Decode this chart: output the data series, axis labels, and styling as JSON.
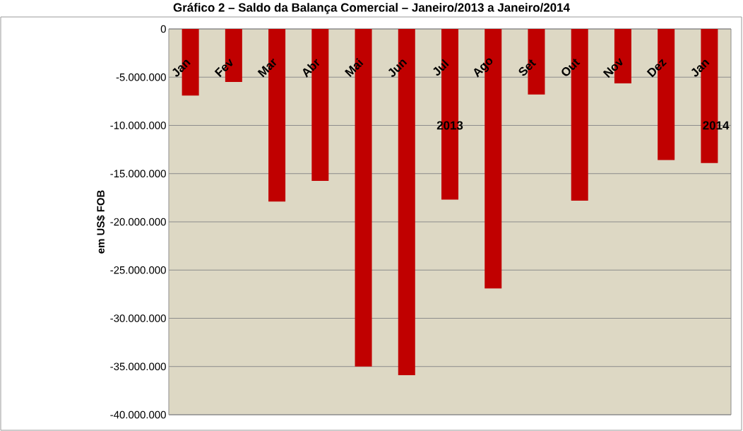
{
  "chart_data": {
    "type": "bar",
    "title": "Gráfico 2 – Saldo da Balança Comercial – Janeiro/2013 a Janeiro/2014",
    "ylabel": "em US$ FOB",
    "categories": [
      "Jan",
      "Fev",
      "Mar",
      "Abr",
      "Mai",
      "Jun",
      "Jul",
      "Ago",
      "Set",
      "Out",
      "Nov",
      "Dez",
      "Jan"
    ],
    "values": [
      -6900000,
      -5500000,
      -17900000,
      -15750000,
      -35000000,
      -35900000,
      -17700000,
      -26900000,
      -6800000,
      -17800000,
      -5650000,
      -13600000,
      -13900000
    ],
    "color": "#c00000",
    "ylim": [
      -40000000,
      0
    ],
    "yticks": [
      {
        "value": -40000000,
        "label": "-40.000.000"
      },
      {
        "value": -35000000,
        "label": "-35.000.000"
      },
      {
        "value": -30000000,
        "label": "-30.000.000"
      },
      {
        "value": -25000000,
        "label": "-25.000.000"
      },
      {
        "value": -20000000,
        "label": "-20.000.000"
      },
      {
        "value": -15000000,
        "label": "-15.000.000"
      },
      {
        "value": -10000000,
        "label": "-10.000.000"
      },
      {
        "value": -5000000,
        "label": "-5.000.000"
      },
      {
        "value": 0,
        "label": "0"
      }
    ],
    "annotations": [
      "2013",
      "2014"
    ],
    "grid": "y"
  }
}
